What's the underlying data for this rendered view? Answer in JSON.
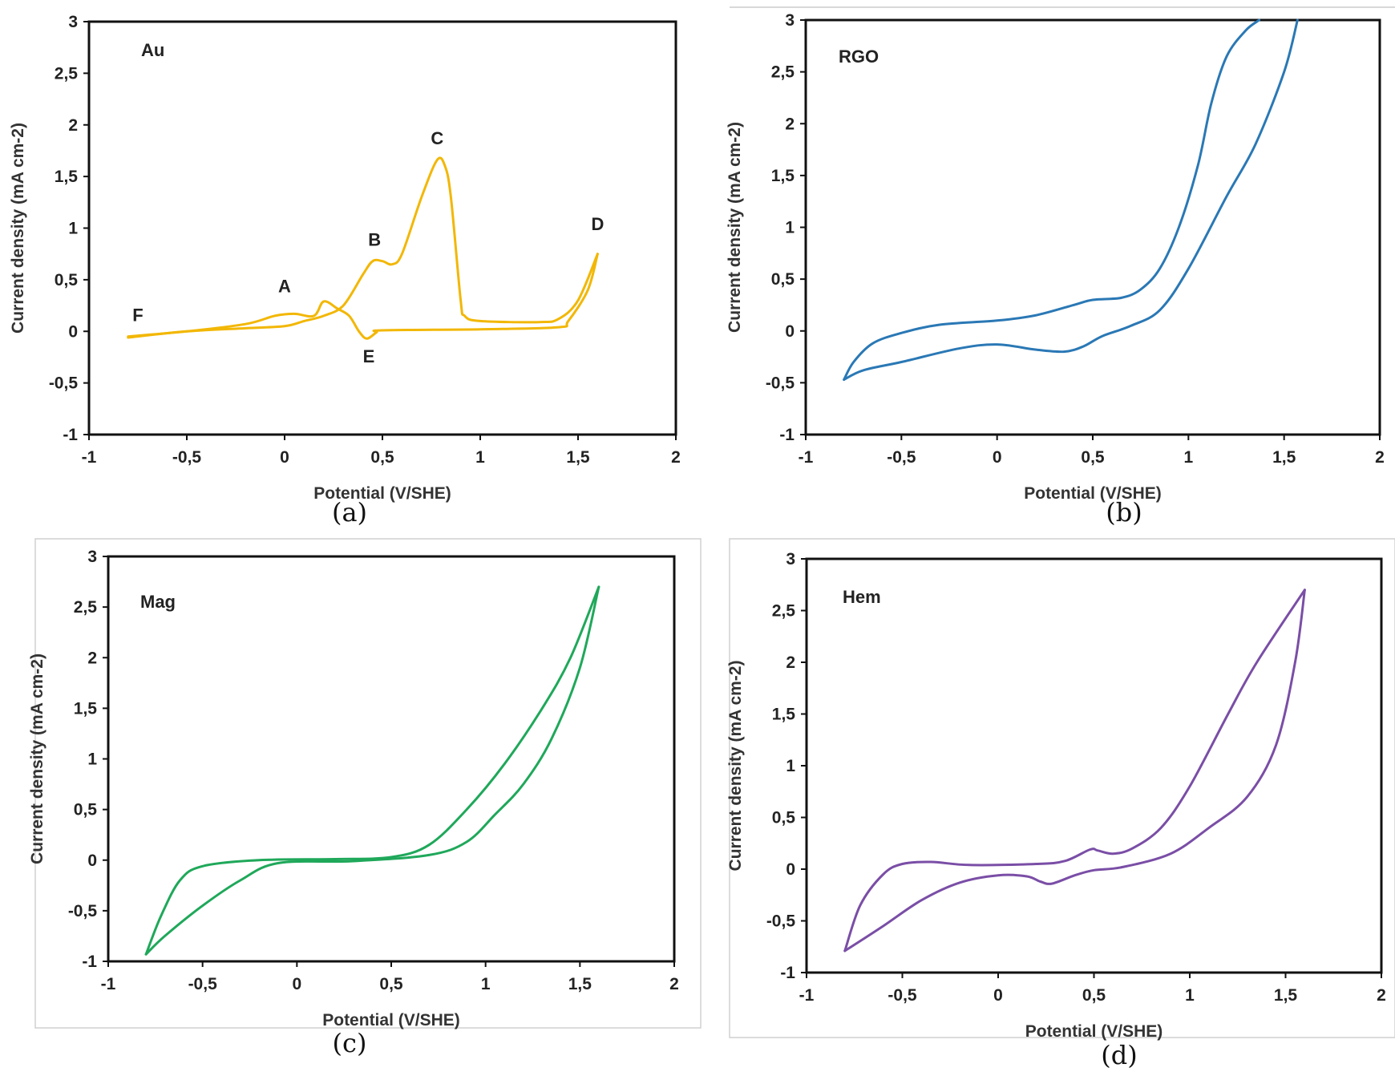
{
  "chart_data": [
    {
      "type": "line",
      "panel": "(a)",
      "sample_label": "Au",
      "xlabel": "Potential (V/SHE)",
      "ylabel": "Current density (mA cm-2)",
      "xlim": [
        -1,
        2
      ],
      "ylim": [
        -1,
        3
      ],
      "xticks": [
        "-1",
        "-0,5",
        "0",
        "0,5",
        "1",
        "1,5",
        "2"
      ],
      "yticks": [
        "-1",
        "-0,5",
        "0",
        "0,5",
        "1",
        "1,5",
        "2",
        "2,5",
        "3"
      ],
      "grid": false,
      "color": "#f2b705",
      "annotations": [
        {
          "text": "A",
          "x": 0.0,
          "y": 0.38
        },
        {
          "text": "B",
          "x": 0.46,
          "y": 0.83
        },
        {
          "text": "C",
          "x": 0.78,
          "y": 1.81
        },
        {
          "text": "D",
          "x": 1.6,
          "y": 0.98
        },
        {
          "text": "E",
          "x": 0.43,
          "y": -0.3
        },
        {
          "text": "F",
          "x": -0.75,
          "y": 0.1
        }
      ],
      "series": [
        {
          "x": [
            -0.8,
            -0.5,
            -0.2,
            0,
            0.1,
            0.2,
            0.3,
            0.4,
            0.45,
            0.5,
            0.55,
            0.6,
            0.7,
            0.78,
            0.82,
            0.85,
            0.9,
            0.92,
            1.0,
            1.3,
            1.4,
            1.5,
            1.6
          ],
          "y": [
            -0.06,
            0,
            0.03,
            0.05,
            0.1,
            0.15,
            0.25,
            0.55,
            0.68,
            0.68,
            0.65,
            0.75,
            1.3,
            1.66,
            1.6,
            1.3,
            0.3,
            0.15,
            0.1,
            0.09,
            0.12,
            0.3,
            0.75
          ]
        },
        {
          "x": [
            1.6,
            1.55,
            1.45,
            1.4,
            1.0,
            0.5,
            0.47,
            0.42,
            0.38,
            0.33,
            0.27,
            0.2,
            0.15,
            0.05,
            -0.05,
            -0.2,
            -0.5,
            -0.8
          ],
          "y": [
            0.75,
            0.4,
            0.1,
            0.04,
            0.02,
            0.01,
            -0.01,
            -0.07,
            0.0,
            0.15,
            0.22,
            0.29,
            0.15,
            0.17,
            0.15,
            0.07,
            0.0,
            -0.05
          ]
        }
      ]
    },
    {
      "type": "line",
      "panel": "(b)",
      "sample_label": "RGO",
      "xlabel": "Potential (V/SHE)",
      "ylabel": "Current density (mA cm-2)",
      "xlim": [
        -1,
        2
      ],
      "ylim": [
        -1,
        3
      ],
      "xticks": [
        "-1",
        "-0,5",
        "0",
        "0,5",
        "1",
        "1,5",
        "2"
      ],
      "yticks": [
        "-1",
        "-0,5",
        "0",
        "0,5",
        "1",
        "1,5",
        "2",
        "2,5",
        "3"
      ],
      "grid": false,
      "color": "#2a78b5",
      "series": [
        {
          "x": [
            -0.8,
            -0.75,
            -0.65,
            -0.5,
            -0.3,
            0,
            0.2,
            0.4,
            0.5,
            0.65,
            0.75,
            0.85,
            0.95,
            1.05,
            1.12,
            1.2,
            1.3,
            1.37
          ],
          "y": [
            -0.47,
            -0.3,
            -0.12,
            -0.02,
            0.06,
            0.1,
            0.15,
            0.25,
            0.3,
            0.32,
            0.4,
            0.6,
            1.0,
            1.6,
            2.2,
            2.65,
            2.9,
            3.0
          ]
        },
        {
          "x": [
            1.57,
            1.5,
            1.35,
            1.2,
            1.0,
            0.85,
            0.7,
            0.55,
            0.45,
            0.35,
            0.2,
            0,
            -0.2,
            -0.5,
            -0.7,
            -0.8
          ],
          "y": [
            3.0,
            2.5,
            1.8,
            1.3,
            0.6,
            0.2,
            0.05,
            -0.05,
            -0.15,
            -0.2,
            -0.18,
            -0.13,
            -0.17,
            -0.3,
            -0.38,
            -0.47
          ]
        }
      ]
    },
    {
      "type": "line",
      "panel": "(c)",
      "sample_label": "Mag",
      "xlabel": "Potential (V/SHE)",
      "ylabel": "Current density (mA cm-2)",
      "xlim": [
        -1,
        2
      ],
      "ylim": [
        -1,
        3
      ],
      "xticks": [
        "-1",
        "-0,5",
        "0",
        "0,5",
        "1",
        "1,5",
        "2"
      ],
      "yticks": [
        "-1",
        "-0,5",
        "0",
        "0,5",
        "1",
        "1,5",
        "2",
        "2,5",
        "3"
      ],
      "grid": false,
      "color": "#1fa85a",
      "series": [
        {
          "x": [
            -0.8,
            -0.72,
            -0.62,
            -0.5,
            -0.2,
            0.2,
            0.5,
            0.7,
            0.9,
            1.1,
            1.3,
            1.45,
            1.6
          ],
          "y": [
            -0.93,
            -0.55,
            -0.2,
            -0.06,
            0.0,
            0.01,
            0.03,
            0.15,
            0.5,
            0.95,
            1.5,
            2.0,
            2.7
          ]
        },
        {
          "x": [
            1.6,
            1.5,
            1.35,
            1.2,
            1.05,
            0.9,
            0.7,
            0.3,
            -0.1,
            -0.3,
            -0.5,
            -0.7,
            -0.8
          ],
          "y": [
            2.7,
            1.9,
            1.2,
            0.75,
            0.45,
            0.18,
            0.05,
            -0.01,
            -0.03,
            -0.2,
            -0.45,
            -0.75,
            -0.93
          ]
        }
      ]
    },
    {
      "type": "line",
      "panel": "(d)",
      "sample_label": "Hem",
      "xlabel": "Potential (V/SHE)",
      "ylabel": "Current density (mA cm-2)",
      "xlim": [
        -1,
        2
      ],
      "ylim": [
        -1,
        3
      ],
      "xticks": [
        "-1",
        "-0,5",
        "0",
        "0,5",
        "1",
        "1,5",
        "2"
      ],
      "yticks": [
        "-1",
        "-0,5",
        "0",
        "0,5",
        "1",
        "1,5",
        "2",
        "2,5",
        "3"
      ],
      "grid": false,
      "color": "#7a4ea6",
      "series": [
        {
          "x": [
            -0.8,
            -0.72,
            -0.6,
            -0.5,
            -0.35,
            -0.15,
            0.2,
            0.35,
            0.48,
            0.52,
            0.6,
            0.7,
            0.85,
            1.0,
            1.2,
            1.35,
            1.6
          ],
          "y": [
            -0.79,
            -0.35,
            -0.05,
            0.05,
            0.07,
            0.04,
            0.05,
            0.08,
            0.19,
            0.18,
            0.15,
            0.2,
            0.4,
            0.8,
            1.5,
            2.0,
            2.7
          ]
        },
        {
          "x": [
            1.6,
            1.55,
            1.45,
            1.3,
            1.1,
            0.9,
            0.65,
            0.5,
            0.4,
            0.28,
            0.22,
            0.15,
            0,
            -0.2,
            -0.4,
            -0.6,
            -0.8
          ],
          "y": [
            2.7,
            2.0,
            1.2,
            0.7,
            0.4,
            0.15,
            0.02,
            -0.01,
            -0.06,
            -0.14,
            -0.12,
            -0.07,
            -0.06,
            -0.13,
            -0.3,
            -0.55,
            -0.79
          ]
        }
      ]
    }
  ]
}
